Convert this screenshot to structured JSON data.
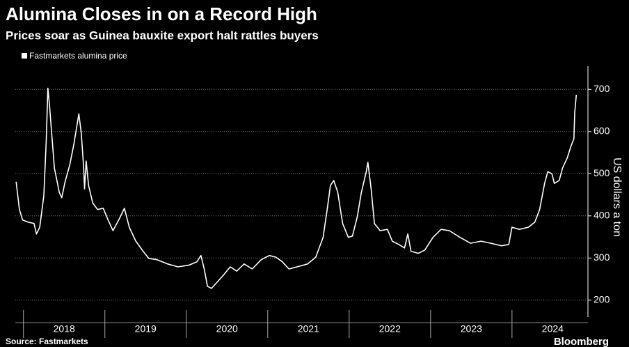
{
  "chart_data": {
    "type": "line",
    "title": "Alumina Closes in on a Record High",
    "subtitle": "Prices soar as Guinea bauxite export halt rattles buyers",
    "y_axis_label": "US dollars a ton",
    "source": "Source: Fastmarkets",
    "brand": "Bloomberg",
    "x": [
      2017.91,
      2017.95,
      2017.99,
      2018.06,
      2018.13,
      2018.16,
      2018.2,
      2018.25,
      2018.28,
      2018.3,
      2018.32,
      2018.34,
      2018.38,
      2018.44,
      2018.47,
      2018.51,
      2018.57,
      2018.62,
      2018.68,
      2018.71,
      2018.74,
      2018.75,
      2018.77,
      2018.8,
      2018.85,
      2018.91,
      2018.98,
      2019.04,
      2019.1,
      2019.17,
      2019.24,
      2019.3,
      2019.38,
      2019.47,
      2019.54,
      2019.64,
      2019.77,
      2019.9,
      2020.03,
      2020.13,
      2020.18,
      2020.22,
      2020.26,
      2020.31,
      2020.37,
      2020.45,
      2020.54,
      2020.62,
      2020.71,
      2020.81,
      2020.92,
      2021.02,
      2021.1,
      2021.18,
      2021.26,
      2021.36,
      2021.49,
      2021.59,
      2021.68,
      2021.73,
      2021.77,
      2021.81,
      2021.86,
      2021.92,
      2021.99,
      2022.04,
      2022.1,
      2022.15,
      2022.21,
      2022.23,
      2022.27,
      2022.31,
      2022.38,
      2022.47,
      2022.53,
      2022.61,
      2022.68,
      2022.72,
      2022.76,
      2022.85,
      2022.93,
      2023.03,
      2023.13,
      2023.23,
      2023.36,
      2023.49,
      2023.62,
      2023.74,
      2023.87,
      2023.96,
      2024.0,
      2024.09,
      2024.2,
      2024.28,
      2024.34,
      2024.4,
      2024.44,
      2024.49,
      2024.52,
      2024.58,
      2024.62,
      2024.68,
      2024.72,
      2024.76,
      2024.77,
      2024.79
    ],
    "series": [
      {
        "name": "Fastmarkets alumina price",
        "color": "#ffffff",
        "values": [
          481,
          415,
          390,
          385,
          382,
          357,
          373,
          448,
          580,
          703,
          662,
          612,
          513,
          456,
          443,
          480,
          522,
          571,
          642,
          596,
          513,
          464,
          530,
          472,
          431,
          415,
          418,
          390,
          365,
          390,
          418,
          373,
          340,
          316,
          299,
          296,
          286,
          279,
          283,
          291,
          306,
          274,
          233,
          228,
          241,
          258,
          279,
          269,
          286,
          274,
          296,
          306,
          302,
          291,
          274,
          279,
          286,
          302,
          349,
          415,
          472,
          484,
          456,
          382,
          349,
          352,
          398,
          456,
          505,
          527,
          464,
          382,
          365,
          368,
          340,
          332,
          324,
          357,
          316,
          311,
          319,
          349,
          368,
          365,
          349,
          335,
          340,
          335,
          329,
          332,
          373,
          368,
          373,
          385,
          415,
          477,
          505,
          500,
          477,
          484,
          513,
          538,
          563,
          583,
          645,
          687
        ]
      }
    ],
    "xlim": [
      2017.9,
      2024.89
    ],
    "xticks": [
      {
        "value": 2018.5,
        "label": "2018"
      },
      {
        "value": 2019.5,
        "label": "2019"
      },
      {
        "value": 2020.5,
        "label": "2020"
      },
      {
        "value": 2021.5,
        "label": "2021"
      },
      {
        "value": 2022.5,
        "label": "2022"
      },
      {
        "value": 2023.5,
        "label": "2023"
      },
      {
        "value": 2024.5,
        "label": "2024"
      }
    ],
    "ylim": [
      160,
      755
    ],
    "yticks": [
      200,
      300,
      400,
      500,
      600,
      700
    ],
    "grid": true
  }
}
